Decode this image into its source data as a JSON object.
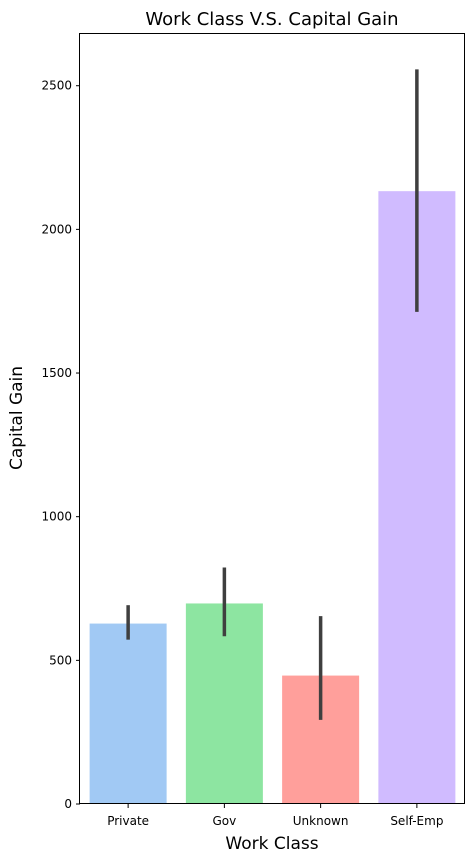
{
  "chart_data": {
    "type": "bar",
    "title": "Work Class V.S. Capital Gain",
    "xlabel": "Work Class",
    "ylabel": "Capital Gain",
    "categories": [
      "Private",
      "Gov",
      "Unknown",
      "Self-Emp"
    ],
    "values": [
      628,
      698,
      447,
      2133
    ],
    "error_low": [
      572,
      584,
      293,
      1713
    ],
    "error_high": [
      692,
      823,
      654,
      2557
    ],
    "colors": [
      "#a1c9f4",
      "#8de5a1",
      "#ff9f9b",
      "#d0bbff"
    ],
    "error_color": "#3f3f3f",
    "ylim": [
      0,
      2680
    ],
    "yticks": [
      0,
      500,
      1000,
      1500,
      2000,
      2500
    ],
    "grid": false
  }
}
